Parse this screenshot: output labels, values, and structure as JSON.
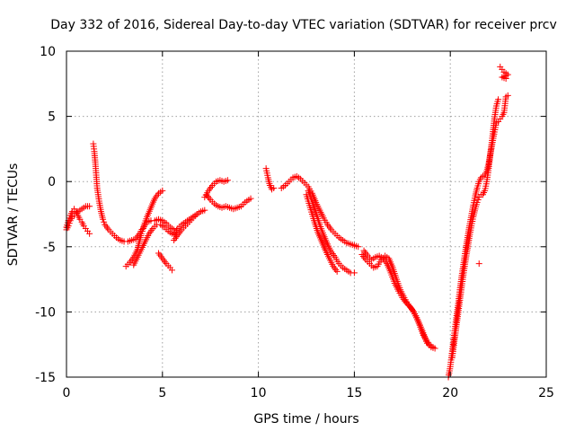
{
  "chart_data": {
    "type": "scatter",
    "title": "Day 332 of 2016, Sidereal Day-to-day VTEC variation (SDTVAR) for receiver prcv",
    "xlabel": "GPS time / hours",
    "ylabel": "SDTVAR / TECUs",
    "xlim": [
      0,
      25
    ],
    "ylim": [
      -15,
      10
    ],
    "xticks": [
      0,
      5,
      10,
      15,
      20,
      25
    ],
    "yticks": [
      -15,
      -10,
      -5,
      0,
      5,
      10
    ],
    "grid": true,
    "marker": "+",
    "color": "#ff0000",
    "series": [
      {
        "name": "seg-0a",
        "points": [
          [
            0.0,
            -3.7
          ],
          [
            0.1,
            -3.4
          ],
          [
            0.2,
            -3.0
          ],
          [
            0.3,
            -2.7
          ],
          [
            0.4,
            -2.6
          ],
          [
            0.5,
            -2.4
          ],
          [
            0.6,
            -2.3
          ],
          [
            0.7,
            -2.2
          ],
          [
            0.8,
            -2.1
          ],
          [
            0.9,
            -2.0
          ],
          [
            1.0,
            -1.9
          ],
          [
            1.1,
            -1.9
          ],
          [
            1.2,
            -1.9
          ]
        ]
      },
      {
        "name": "seg-0b",
        "points": [
          [
            0.0,
            -3.5
          ],
          [
            0.1,
            -3.0
          ],
          [
            0.2,
            -2.6
          ],
          [
            0.3,
            -2.3
          ],
          [
            0.4,
            -2.1
          ],
          [
            0.5,
            -2.3
          ],
          [
            0.6,
            -2.6
          ],
          [
            0.7,
            -2.9
          ],
          [
            0.8,
            -3.1
          ],
          [
            0.9,
            -3.4
          ],
          [
            1.0,
            -3.6
          ],
          [
            1.1,
            -3.8
          ],
          [
            1.2,
            -4.0
          ]
        ]
      },
      {
        "name": "seg-1",
        "points": [
          [
            1.4,
            2.9
          ],
          [
            1.45,
            2.3
          ],
          [
            1.5,
            1.5
          ],
          [
            1.55,
            0.5
          ],
          [
            1.6,
            -0.5
          ],
          [
            1.7,
            -1.5
          ],
          [
            1.8,
            -2.3
          ],
          [
            1.9,
            -2.9
          ],
          [
            2.0,
            -3.3
          ],
          [
            2.2,
            -3.7
          ],
          [
            2.4,
            -4.0
          ],
          [
            2.6,
            -4.3
          ],
          [
            2.8,
            -4.5
          ],
          [
            3.0,
            -4.6
          ],
          [
            3.2,
            -4.6
          ],
          [
            3.4,
            -4.5
          ],
          [
            3.6,
            -4.4
          ],
          [
            3.8,
            -4.0
          ],
          [
            4.0,
            -3.5
          ],
          [
            4.2,
            -2.7
          ],
          [
            4.4,
            -2.0
          ],
          [
            4.6,
            -1.3
          ],
          [
            4.8,
            -0.9
          ],
          [
            5.0,
            -0.7
          ]
        ]
      },
      {
        "name": "seg-2",
        "points": [
          [
            3.1,
            -6.5
          ],
          [
            3.3,
            -6.2
          ],
          [
            3.5,
            -5.8
          ],
          [
            3.7,
            -5.2
          ],
          [
            3.8,
            -4.6
          ],
          [
            3.9,
            -4.0
          ],
          [
            4.0,
            -3.6
          ],
          [
            4.1,
            -3.3
          ],
          [
            4.2,
            -3.1
          ],
          [
            4.4,
            -3.0
          ],
          [
            4.6,
            -3.0
          ],
          [
            4.8,
            -2.9
          ],
          [
            5.0,
            -3.0
          ],
          [
            5.2,
            -3.2
          ],
          [
            5.4,
            -3.5
          ],
          [
            5.6,
            -3.7
          ]
        ]
      },
      {
        "name": "seg-2b",
        "points": [
          [
            3.5,
            -6.4
          ],
          [
            3.7,
            -5.8
          ],
          [
            3.9,
            -5.2
          ],
          [
            4.1,
            -4.6
          ],
          [
            4.3,
            -4.0
          ],
          [
            4.5,
            -3.6
          ],
          [
            4.7,
            -3.3
          ],
          [
            4.9,
            -3.3
          ],
          [
            5.1,
            -3.5
          ],
          [
            5.3,
            -3.8
          ],
          [
            5.5,
            -4.0
          ],
          [
            5.7,
            -4.1
          ]
        ]
      },
      {
        "name": "seg-3",
        "points": [
          [
            4.8,
            -5.5
          ],
          [
            5.0,
            -5.9
          ],
          [
            5.2,
            -6.3
          ],
          [
            5.4,
            -6.6
          ],
          [
            5.5,
            -6.8
          ]
        ]
      },
      {
        "name": "seg-4",
        "points": [
          [
            5.6,
            -4.5
          ],
          [
            5.8,
            -4.1
          ],
          [
            6.0,
            -3.7
          ],
          [
            6.2,
            -3.4
          ],
          [
            6.4,
            -3.1
          ],
          [
            6.6,
            -2.8
          ],
          [
            6.8,
            -2.5
          ],
          [
            7.0,
            -2.3
          ],
          [
            7.2,
            -2.2
          ]
        ]
      },
      {
        "name": "seg-4b",
        "points": [
          [
            5.6,
            -4.0
          ],
          [
            5.8,
            -3.6
          ],
          [
            6.0,
            -3.3
          ],
          [
            6.2,
            -3.1
          ],
          [
            6.4,
            -2.9
          ],
          [
            6.6,
            -2.7
          ],
          [
            6.8,
            -2.5
          ]
        ]
      },
      {
        "name": "seg-5",
        "points": [
          [
            7.2,
            -1.2
          ],
          [
            7.4,
            -0.7
          ],
          [
            7.6,
            -0.3
          ],
          [
            7.8,
            0.0
          ],
          [
            8.0,
            0.1
          ],
          [
            8.2,
            0.0
          ],
          [
            8.4,
            0.1
          ]
        ]
      },
      {
        "name": "seg-5b",
        "points": [
          [
            7.3,
            -1.0
          ],
          [
            7.5,
            -1.4
          ],
          [
            7.7,
            -1.7
          ],
          [
            7.9,
            -1.9
          ],
          [
            8.1,
            -2.0
          ],
          [
            8.3,
            -1.9
          ],
          [
            8.5,
            -2.0
          ],
          [
            8.7,
            -2.1
          ],
          [
            8.9,
            -2.0
          ],
          [
            9.1,
            -1.9
          ],
          [
            9.3,
            -1.6
          ],
          [
            9.5,
            -1.4
          ],
          [
            9.6,
            -1.3
          ]
        ]
      },
      {
        "name": "seg-6",
        "points": [
          [
            10.4,
            1.0
          ],
          [
            10.5,
            0.3
          ],
          [
            10.6,
            -0.3
          ],
          [
            10.7,
            -0.6
          ],
          [
            10.8,
            -0.5
          ]
        ]
      },
      {
        "name": "seg-7",
        "points": [
          [
            11.2,
            -0.5
          ],
          [
            11.4,
            -0.3
          ],
          [
            11.6,
            0.0
          ],
          [
            11.8,
            0.3
          ],
          [
            12.0,
            0.4
          ],
          [
            12.2,
            0.2
          ],
          [
            12.4,
            -0.1
          ],
          [
            12.6,
            -0.4
          ],
          [
            12.8,
            -0.9
          ],
          [
            13.0,
            -1.6
          ],
          [
            13.2,
            -2.2
          ],
          [
            13.4,
            -2.8
          ],
          [
            13.6,
            -3.3
          ],
          [
            13.8,
            -3.7
          ],
          [
            14.0,
            -4.0
          ],
          [
            14.2,
            -4.3
          ],
          [
            14.4,
            -4.5
          ],
          [
            14.6,
            -4.7
          ],
          [
            14.8,
            -4.8
          ],
          [
            15.0,
            -4.9
          ],
          [
            15.2,
            -5.0
          ]
        ]
      },
      {
        "name": "seg-7b",
        "points": [
          [
            12.6,
            -0.7
          ],
          [
            12.8,
            -1.5
          ],
          [
            13.0,
            -2.4
          ],
          [
            13.2,
            -3.3
          ],
          [
            13.4,
            -4.1
          ],
          [
            13.6,
            -4.8
          ],
          [
            13.8,
            -5.4
          ],
          [
            14.0,
            -5.8
          ],
          [
            14.2,
            -6.3
          ],
          [
            14.4,
            -6.6
          ],
          [
            14.6,
            -6.8
          ],
          [
            14.8,
            -7.0
          ],
          [
            15.0,
            -7.0
          ]
        ]
      },
      {
        "name": "seg-7c",
        "points": [
          [
            12.5,
            -1.0
          ],
          [
            12.7,
            -2.0
          ],
          [
            12.9,
            -3.0
          ],
          [
            13.1,
            -3.9
          ],
          [
            13.3,
            -4.6
          ],
          [
            13.5,
            -5.3
          ],
          [
            13.7,
            -5.9
          ],
          [
            13.9,
            -6.5
          ],
          [
            14.1,
            -6.9
          ]
        ]
      },
      {
        "name": "seg-8",
        "points": [
          [
            15.4,
            -5.6
          ],
          [
            15.6,
            -6.0
          ],
          [
            15.8,
            -6.3
          ],
          [
            16.0,
            -6.6
          ],
          [
            16.2,
            -6.5
          ],
          [
            16.4,
            -6.0
          ],
          [
            16.6,
            -5.7
          ],
          [
            16.8,
            -5.9
          ],
          [
            17.0,
            -6.6
          ],
          [
            17.2,
            -7.5
          ],
          [
            17.4,
            -8.3
          ],
          [
            17.6,
            -8.9
          ],
          [
            17.8,
            -9.4
          ],
          [
            18.0,
            -9.8
          ],
          [
            18.2,
            -10.3
          ],
          [
            18.4,
            -11.0
          ],
          [
            18.6,
            -11.8
          ],
          [
            18.8,
            -12.4
          ],
          [
            19.0,
            -12.7
          ],
          [
            19.2,
            -12.8
          ]
        ]
      },
      {
        "name": "seg-8b",
        "points": [
          [
            15.5,
            -5.3
          ],
          [
            15.7,
            -5.7
          ],
          [
            15.9,
            -6.0
          ],
          [
            16.1,
            -5.8
          ],
          [
            16.3,
            -5.7
          ],
          [
            16.5,
            -5.9
          ],
          [
            16.7,
            -6.3
          ],
          [
            16.9,
            -7.0
          ],
          [
            17.1,
            -7.8
          ],
          [
            17.3,
            -8.4
          ],
          [
            17.5,
            -8.9
          ],
          [
            17.7,
            -9.3
          ],
          [
            17.9,
            -9.6
          ],
          [
            18.1,
            -10.0
          ],
          [
            18.3,
            -10.6
          ],
          [
            18.5,
            -11.3
          ],
          [
            18.7,
            -12.0
          ],
          [
            18.9,
            -12.5
          ],
          [
            19.1,
            -12.7
          ]
        ]
      },
      {
        "name": "seg-9",
        "points": [
          [
            19.9,
            -15.0
          ],
          [
            20.0,
            -14.2
          ],
          [
            20.1,
            -13.0
          ],
          [
            20.2,
            -11.8
          ],
          [
            20.3,
            -10.6
          ],
          [
            20.4,
            -9.5
          ],
          [
            20.5,
            -8.3
          ],
          [
            20.6,
            -7.2
          ],
          [
            20.7,
            -6.2
          ],
          [
            20.8,
            -5.2
          ],
          [
            20.9,
            -4.3
          ],
          [
            21.0,
            -3.4
          ],
          [
            21.1,
            -2.6
          ],
          [
            21.2,
            -1.8
          ],
          [
            21.3,
            -1.1
          ],
          [
            21.4,
            -0.5
          ],
          [
            21.5,
            0.0
          ],
          [
            21.6,
            0.3
          ],
          [
            21.7,
            0.4
          ],
          [
            21.8,
            0.5
          ],
          [
            21.9,
            0.8
          ],
          [
            22.0,
            1.4
          ],
          [
            22.1,
            2.2
          ],
          [
            22.2,
            3.0
          ],
          [
            22.3,
            3.8
          ],
          [
            22.4,
            4.5
          ]
        ]
      },
      {
        "name": "seg-9b",
        "points": [
          [
            20.1,
            -13.5
          ],
          [
            20.2,
            -12.4
          ],
          [
            20.3,
            -11.3
          ],
          [
            20.4,
            -10.2
          ],
          [
            20.5,
            -9.1
          ],
          [
            20.6,
            -8.0
          ],
          [
            20.7,
            -7.0
          ],
          [
            20.8,
            -6.0
          ],
          [
            20.9,
            -5.1
          ],
          [
            21.0,
            -4.2
          ],
          [
            21.1,
            -3.4
          ],
          [
            21.2,
            -2.7
          ],
          [
            21.3,
            -2.1
          ],
          [
            21.4,
            -1.6
          ],
          [
            21.5,
            -1.2
          ],
          [
            21.6,
            -1.0
          ],
          [
            21.7,
            -1.0
          ],
          [
            21.8,
            -0.7
          ],
          [
            21.9,
            0.0
          ],
          [
            22.0,
            1.0
          ],
          [
            22.1,
            2.3
          ],
          [
            22.2,
            3.5
          ],
          [
            22.3,
            4.8
          ],
          [
            22.4,
            5.8
          ],
          [
            22.5,
            6.3
          ]
        ]
      },
      {
        "name": "seg-10",
        "points": [
          [
            21.5,
            -6.3
          ]
        ]
      },
      {
        "name": "seg-11",
        "points": [
          [
            22.5,
            4.6
          ],
          [
            22.6,
            4.8
          ],
          [
            22.7,
            5.0
          ],
          [
            22.8,
            5.3
          ],
          [
            22.9,
            6.5
          ],
          [
            23.0,
            6.6
          ]
        ]
      },
      {
        "name": "seg-12",
        "points": [
          [
            22.6,
            8.8
          ],
          [
            22.7,
            8.6
          ],
          [
            22.8,
            8.4
          ],
          [
            22.9,
            8.3
          ],
          [
            23.0,
            8.2
          ],
          [
            22.7,
            8.0
          ],
          [
            22.9,
            7.9
          ]
        ]
      }
    ]
  }
}
